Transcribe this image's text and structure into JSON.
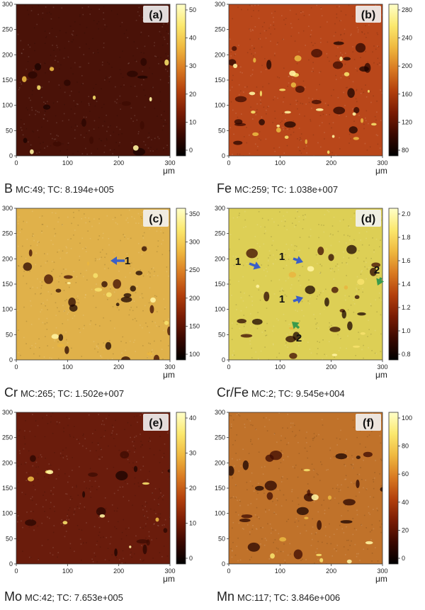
{
  "axis_ticks": [
    "0",
    "100",
    "200",
    "300"
  ],
  "y_ticks": [
    "0",
    "50",
    "100",
    "150",
    "200",
    "250",
    "300"
  ],
  "unit_label": "μm",
  "panels": [
    {
      "letter": "(a)",
      "element": "B",
      "stats": "MC:49; TC: 8.194e+005",
      "colorbar_ticks": [
        "0",
        "10",
        "20",
        "30",
        "40",
        "50"
      ],
      "base_color": "#4a1208"
    },
    {
      "letter": "(b)",
      "element": "Fe",
      "stats": "MC:259; TC: 1.038e+007",
      "colorbar_ticks": [
        "80",
        "120",
        "160",
        "200",
        "240",
        "280"
      ],
      "base_color": "#b9471a"
    },
    {
      "letter": "(c)",
      "element": "Cr",
      "stats": "MC:265; TC: 1.502e+007",
      "colorbar_ticks": [
        "100",
        "150",
        "200",
        "250",
        "300",
        "350"
      ],
      "base_color": "#e0b14a",
      "arrows": [
        {
          "label": "1",
          "color": "blue-arrow"
        }
      ]
    },
    {
      "letter": "(d)",
      "element": "Cr/Fe",
      "stats": "MC:2; TC: 9.545e+004",
      "colorbar_ticks": [
        "0.8",
        "1.0",
        "1.2",
        "1.4",
        "1.6",
        "1.8",
        "2.0"
      ],
      "base_color": "#ddcf55",
      "arrows": [
        {
          "label": "1",
          "color": "blue-arrow"
        },
        {
          "label": "1",
          "color": "blue-arrow"
        },
        {
          "label": "1",
          "color": "blue-arrow"
        },
        {
          "label": "2",
          "color": "green-arrow"
        },
        {
          "label": "2",
          "color": "green-arrow"
        }
      ]
    },
    {
      "letter": "(e)",
      "element": "Mo",
      "stats": "MC:42; TC: 7.653e+005",
      "colorbar_ticks": [
        "0",
        "10",
        "20",
        "30",
        "40"
      ],
      "base_color": "#6a1c0c"
    },
    {
      "letter": "(f)",
      "element": "Mn",
      "stats": "MC:117; TC: 3.846e+006",
      "colorbar_ticks": [
        "0",
        "20",
        "40",
        "60",
        "80",
        "100"
      ],
      "base_color": "#c0722a"
    }
  ],
  "colormap": [
    "#000000",
    "#3a0800",
    "#7a1c04",
    "#b3400c",
    "#d97a22",
    "#efb83f",
    "#fbe86d",
    "#ffffc8"
  ],
  "arrow_colors": {
    "blue-arrow": "#3b5fc7",
    "green-arrow": "#3a9a4c"
  }
}
